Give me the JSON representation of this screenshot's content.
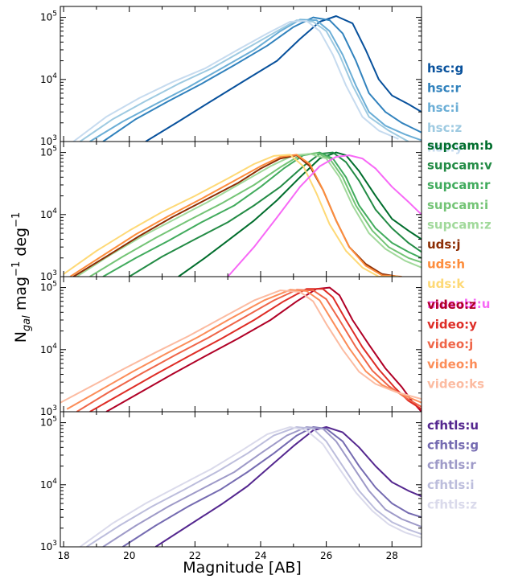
{
  "chart_data": {
    "type": "line",
    "y_scale": "log",
    "xlim": [
      17.9,
      28.9
    ],
    "ylim": [
      1000,
      150000
    ],
    "xlabel_main": "Magnitude [AB]",
    "ylabel_main": "N",
    "ylabel_sub": "gal",
    "ylabel_rest": " mag",
    "ylabel_exp": "−1",
    "ylabel_unit": " deg",
    "x_ticks": [
      18,
      20,
      22,
      24,
      26,
      28
    ],
    "x_tick_labels": [
      "18",
      "20",
      "22",
      "24",
      "26",
      "28"
    ],
    "y_tick_base": "10",
    "y_tick_exps": [
      "3",
      "4",
      "5"
    ],
    "legend_placement": "right",
    "panels": [
      {
        "series": [
          {
            "name": "hsc:g",
            "color": "#08519c",
            "x": [
              20.5,
              21.5,
              22.5,
              23.5,
              24.5,
              25.2,
              25.8,
              26.3,
              26.8,
              27.2,
              27.6,
              28.0,
              28.5,
              28.9
            ],
            "y": [
              1000,
              2100,
              4500,
              9500,
              20000,
              45000,
              85000,
              105000,
              80000,
              30000,
              10000,
              5500,
              4000,
              3000
            ]
          },
          {
            "name": "hsc:r",
            "color": "#3182bd",
            "x": [
              19.2,
              20.2,
              21.2,
              22.2,
              23.2,
              24.2,
              25.0,
              25.6,
              26.1,
              26.5,
              26.9,
              27.3,
              27.8,
              28.3,
              28.9
            ],
            "y": [
              1000,
              2300,
              4500,
              8500,
              17000,
              35000,
              70000,
              100000,
              90000,
              55000,
              20000,
              6000,
              3000,
              2000,
              1400
            ]
          },
          {
            "name": "hsc:i",
            "color": "#6baed6",
            "x": [
              18.8,
              19.8,
              20.8,
              21.8,
              22.8,
              23.8,
              24.6,
              25.2,
              25.7,
              26.1,
              26.5,
              26.9,
              27.3,
              27.8,
              28.4,
              28.9
            ],
            "y": [
              1000,
              2100,
              4000,
              7500,
              15000,
              30000,
              60000,
              92000,
              90000,
              60000,
              25000,
              8000,
              3000,
              1800,
              1300,
              1050
            ]
          },
          {
            "name": "hsc:z",
            "color": "#9ecae1",
            "x": [
              18.5,
              19.5,
              20.5,
              21.5,
              22.5,
              23.5,
              24.5,
              25.1,
              25.6,
              26.0,
              26.4,
              26.8,
              27.3,
              27.9,
              28.5
            ],
            "y": [
              1000,
              2300,
              4500,
              8500,
              15000,
              30000,
              60000,
              90000,
              85000,
              60000,
              25000,
              8000,
              2500,
              1500,
              1000
            ]
          },
          {
            "name": "hsc:y",
            "color": "#c6dbef",
            "x": [
              18.3,
              19.3,
              20.3,
              21.3,
              22.3,
              23.3,
              24.2,
              24.9,
              25.4,
              25.8,
              26.2,
              26.6,
              27.1,
              27.6,
              28.2
            ],
            "y": [
              1000,
              2500,
              5000,
              9000,
              15000,
              30000,
              55000,
              85000,
              88000,
              60000,
              25000,
              8000,
              2500,
              1500,
              1100
            ]
          }
        ]
      },
      {
        "series": [
          {
            "name": "supcam:b",
            "color": "#006d2c",
            "x": [
              21.5,
              22.3,
              23.0,
              23.8,
              24.5,
              25.2,
              25.8,
              26.3,
              26.6,
              27.0,
              27.5,
              28.0,
              28.5,
              28.9
            ],
            "y": [
              1000,
              2000,
              3800,
              8000,
              17000,
              40000,
              80000,
              100000,
              90000,
              50000,
              20000,
              8500,
              5500,
              4000
            ]
          },
          {
            "name": "supcam:v",
            "color": "#238b45",
            "x": [
              20.0,
              21.0,
              22.0,
              23.0,
              23.8,
              24.6,
              25.3,
              25.8,
              26.2,
              26.6,
              27.0,
              27.5,
              28.0,
              28.5,
              28.9
            ],
            "y": [
              1000,
              2100,
              4000,
              7500,
              14000,
              28000,
              60000,
              95000,
              100000,
              70000,
              35000,
              12000,
              6000,
              3500,
              2500
            ]
          },
          {
            "name": "supcam:r",
            "color": "#41ab5d",
            "x": [
              19.2,
              20.2,
              21.2,
              22.2,
              23.2,
              24.0,
              24.7,
              25.3,
              25.8,
              26.2,
              26.6,
              27.0,
              27.5,
              28.0,
              28.5,
              28.9
            ],
            "y": [
              1000,
              2000,
              3800,
              7500,
              14000,
              28000,
              55000,
              90000,
              100000,
              80000,
              40000,
              14000,
              6000,
              3500,
              2500,
              2000
            ]
          },
          {
            "name": "supcam:i",
            "color": "#74c476",
            "x": [
              18.8,
              19.8,
              20.8,
              21.8,
              22.8,
              23.8,
              24.6,
              25.2,
              25.7,
              26.1,
              26.5,
              26.9,
              27.4,
              27.9,
              28.5,
              28.9
            ],
            "y": [
              1000,
              2100,
              4200,
              8000,
              15000,
              30000,
              58000,
              90000,
              98000,
              80000,
              40000,
              14000,
              5500,
              3000,
              2000,
              1700
            ]
          },
          {
            "name": "supcam:z",
            "color": "#a1d99b",
            "x": [
              18.4,
              19.4,
              20.4,
              21.4,
              22.4,
              23.4,
              24.3,
              25.0,
              25.5,
              26.0,
              26.4,
              26.8,
              27.3,
              27.8,
              28.4,
              28.9
            ],
            "y": [
              1000,
              2200,
              4500,
              8500,
              16000,
              32000,
              60000,
              90000,
              95000,
              80000,
              40000,
              14000,
              5000,
              2800,
              1800,
              1400
            ]
          },
          {
            "name": "uds:j",
            "color": "#8c2d04",
            "x": [
              18.3,
              19.3,
              20.3,
              21.3,
              22.3,
              23.3,
              24.0,
              24.6,
              25.1,
              25.5,
              25.9,
              26.3,
              26.7,
              27.2,
              27.7,
              28.2
            ],
            "y": [
              1000,
              2100,
              4500,
              9000,
              17000,
              32000,
              55000,
              80000,
              90000,
              60000,
              25000,
              8000,
              3000,
              1600,
              1100,
              1000
            ]
          },
          {
            "name": "uds:h",
            "color": "#fd8d3c",
            "x": [
              18.2,
              19.2,
              20.2,
              21.2,
              22.2,
              23.2,
              24.0,
              24.6,
              25.1,
              25.5,
              25.9,
              26.3,
              26.7,
              27.2,
              27.7,
              28.3
            ],
            "y": [
              1000,
              2200,
              4800,
              9500,
              18000,
              35000,
              60000,
              85000,
              92000,
              65000,
              25000,
              8000,
              3000,
              1500,
              1050,
              1000
            ]
          },
          {
            "name": "uds:k",
            "color": "#fed976",
            "x": [
              18.0,
              19.0,
              20.0,
              21.0,
              22.0,
              23.0,
              23.8,
              24.4,
              24.9,
              25.3,
              25.7,
              26.1,
              26.6,
              27.1,
              27.6,
              28.2
            ],
            "y": [
              1100,
              2600,
              5500,
              11000,
              20000,
              38000,
              65000,
              88000,
              92000,
              60000,
              22000,
              7000,
              2600,
              1400,
              1000,
              1000
            ]
          },
          {
            "name": "musubi:u",
            "color": "#f768f6",
            "x": [
              23.0,
              23.8,
              24.5,
              25.2,
              25.8,
              26.3,
              26.7,
              27.1,
              27.5,
              28.0,
              28.5,
              28.9
            ],
            "y": [
              1000,
              3000,
              9000,
              28000,
              60000,
              85000,
              90000,
              80000,
              55000,
              28000,
              16000,
              10000
            ]
          }
        ]
      },
      {
        "series": [
          {
            "name": "video:z",
            "color": "#b00026",
            "x": [
              19.3,
              20.3,
              21.3,
              22.3,
              23.3,
              24.3,
              25.1,
              25.7,
              26.1,
              26.4,
              26.8,
              27.3,
              27.8,
              28.3,
              28.6,
              28.9
            ],
            "y": [
              1000,
              2000,
              4000,
              7800,
              15000,
              30000,
              60000,
              95000,
              100000,
              75000,
              30000,
              12000,
              5000,
              2500,
              1500,
              1000
            ]
          },
          {
            "name": "video:y",
            "color": "#de2d26",
            "x": [
              18.8,
              19.8,
              20.8,
              21.8,
              22.8,
              23.8,
              24.7,
              25.4,
              25.9,
              26.2,
              26.6,
              27.1,
              27.6,
              28.1,
              28.5,
              28.9
            ],
            "y": [
              1000,
              2000,
              4000,
              7800,
              15000,
              30000,
              60000,
              95000,
              95000,
              70000,
              30000,
              11000,
              4800,
              2400,
              1500,
              1100
            ]
          },
          {
            "name": "video:j",
            "color": "#ef6548",
            "x": [
              18.4,
              19.4,
              20.4,
              21.4,
              22.4,
              23.4,
              24.4,
              25.1,
              25.6,
              26.0,
              26.4,
              26.9,
              27.4,
              27.9,
              28.4,
              28.9
            ],
            "y": [
              1000,
              2100,
              4200,
              8200,
              15500,
              31000,
              62000,
              92000,
              90000,
              65000,
              30000,
              11000,
              4600,
              2600,
              1700,
              1200
            ]
          },
          {
            "name": "video:h",
            "color": "#fc8d59",
            "x": [
              18.1,
              19.1,
              20.1,
              21.1,
              22.1,
              23.1,
              24.1,
              24.9,
              25.4,
              25.8,
              26.2,
              26.7,
              27.2,
              27.7,
              28.3,
              28.9
            ],
            "y": [
              1100,
              2200,
              4400,
              8500,
              16000,
              32000,
              62000,
              92000,
              88000,
              62000,
              28000,
              10500,
              4500,
              2700,
              1900,
              1400
            ]
          },
          {
            "name": "video:ks",
            "color": "#fcbba1",
            "x": [
              17.9,
              18.8,
              19.8,
              20.8,
              21.8,
              22.8,
              23.8,
              24.6,
              25.2,
              25.6,
              26.0,
              26.5,
              27.0,
              27.5,
              28.1,
              28.9
            ],
            "y": [
              1400,
              2500,
              4800,
              9000,
              16500,
              32000,
              62000,
              90000,
              85000,
              60000,
              26000,
              10000,
              4400,
              2800,
              2100,
              1600
            ]
          }
        ]
      },
      {
        "series": [
          {
            "name": "cfhtls:u",
            "color": "#54278f",
            "x": [
              20.8,
              21.8,
              22.8,
              23.6,
              24.3,
              25.0,
              25.6,
              26.0,
              26.5,
              27.0,
              27.5,
              28.0,
              28.5,
              28.9
            ],
            "y": [
              1000,
              2200,
              4800,
              9500,
              20000,
              42000,
              75000,
              85000,
              70000,
              40000,
              20000,
              11000,
              8000,
              6500
            ]
          },
          {
            "name": "cfhtls:g",
            "color": "#756bb1",
            "x": [
              19.8,
              20.8,
              21.8,
              22.8,
              23.6,
              24.4,
              25.1,
              25.6,
              26.0,
              26.5,
              27.0,
              27.5,
              28.0,
              28.5,
              28.9
            ],
            "y": [
              1000,
              2200,
              4500,
              8500,
              16000,
              32000,
              62000,
              85000,
              80000,
              50000,
              20000,
              9000,
              5000,
              3500,
              3000
            ]
          },
          {
            "name": "cfhtls:r",
            "color": "#9e9ac8",
            "x": [
              19.2,
              20.2,
              21.2,
              22.2,
              23.2,
              24.0,
              24.8,
              25.4,
              25.9,
              26.3,
              26.8,
              27.3,
              27.8,
              28.3,
              28.9
            ],
            "y": [
              1000,
              2200,
              4500,
              8500,
              16000,
              32000,
              62000,
              85000,
              80000,
              50000,
              20000,
              8000,
              4000,
              2800,
              2100
            ]
          },
          {
            "name": "cfhtls:i",
            "color": "#bcbddc",
            "x": [
              18.7,
              19.7,
              20.7,
              21.7,
              22.7,
              23.6,
              24.4,
              25.1,
              25.6,
              26.0,
              26.5,
              27.0,
              27.5,
              28.0,
              28.5,
              28.9
            ],
            "y": [
              1000,
              2200,
              4500,
              8500,
              16500,
              32000,
              62000,
              85000,
              80000,
              50000,
              20000,
              8000,
              4000,
              2500,
              1900,
              1600
            ]
          },
          {
            "name": "cfhtls:z",
            "color": "#dadaeb",
            "x": [
              18.5,
              19.5,
              20.5,
              21.5,
              22.5,
              23.4,
              24.2,
              24.9,
              25.4,
              25.9,
              26.4,
              26.9,
              27.4,
              27.9,
              28.4,
              28.9
            ],
            "y": [
              1000,
              2400,
              5000,
              9500,
              18000,
              35000,
              65000,
              85000,
              75000,
              45000,
              18000,
              7500,
              3800,
              2300,
              1700,
              1400
            ]
          }
        ]
      }
    ]
  }
}
